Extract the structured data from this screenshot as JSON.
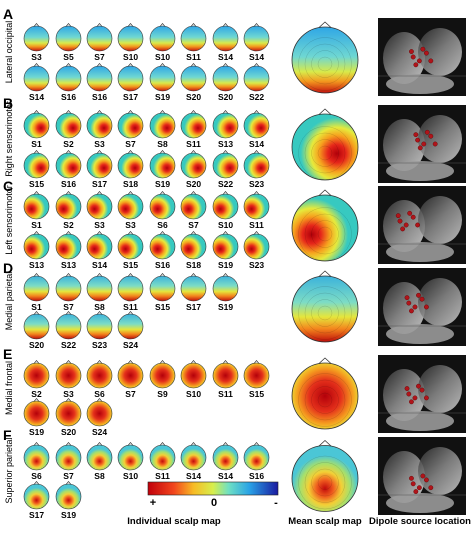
{
  "panels": [
    {
      "letter": "A",
      "label": "Lateral occipital",
      "pattern": "occipital",
      "rows": [
        [
          "S3",
          "S5",
          "S7",
          "S10",
          "S10",
          "S11",
          "S14",
          "S14"
        ],
        [
          "S14",
          "S16",
          "S16",
          "S17",
          "S19",
          "S20",
          "S20",
          "S22"
        ]
      ]
    },
    {
      "letter": "B",
      "label": "Right sensorimotor",
      "pattern": "right",
      "rows": [
        [
          "S1",
          "S2",
          "S3",
          "S7",
          "S8",
          "S11",
          "S13",
          "S14"
        ],
        [
          "S15",
          "S16",
          "S17",
          "S18",
          "S19",
          "S20",
          "S22",
          "S23"
        ]
      ]
    },
    {
      "letter": "C",
      "label": "Left sensorimotor",
      "pattern": "left",
      "rows": [
        [
          "S1",
          "S2",
          "S3",
          "S3",
          "S6",
          "S7",
          "S10",
          "S11"
        ],
        [
          "S13",
          "S13",
          "S14",
          "S15",
          "S16",
          "S18",
          "S19",
          "S23"
        ]
      ]
    },
    {
      "letter": "D",
      "label": "Medial parietal",
      "pattern": "parietal",
      "rows": [
        [
          "S1",
          "S7",
          "S8",
          "S11",
          "S15",
          "S17",
          "S19"
        ],
        [
          "S20",
          "S22",
          "S23",
          "S24"
        ]
      ]
    },
    {
      "letter": "E",
      "label": "Medial frontal",
      "pattern": "frontal",
      "rows": [
        [
          "S2",
          "S3",
          "S6",
          "S7",
          "S9",
          "S10",
          "S11",
          "S15"
        ],
        [
          "S19",
          "S20",
          "S24"
        ]
      ]
    },
    {
      "letter": "F",
      "label": "Superior parietal",
      "pattern": "superior",
      "rows": [
        [
          "S6",
          "S7",
          "S8",
          "S10",
          "S11",
          "S14",
          "S14",
          "S16"
        ],
        [
          "S17",
          "S19"
        ]
      ]
    }
  ],
  "colorbar": {
    "plus": "+",
    "zero": "0",
    "minus": "-"
  },
  "footer": {
    "individual": "Individual scalp map",
    "mean": "Mean scalp map",
    "dipole": "Dipole source location"
  }
}
